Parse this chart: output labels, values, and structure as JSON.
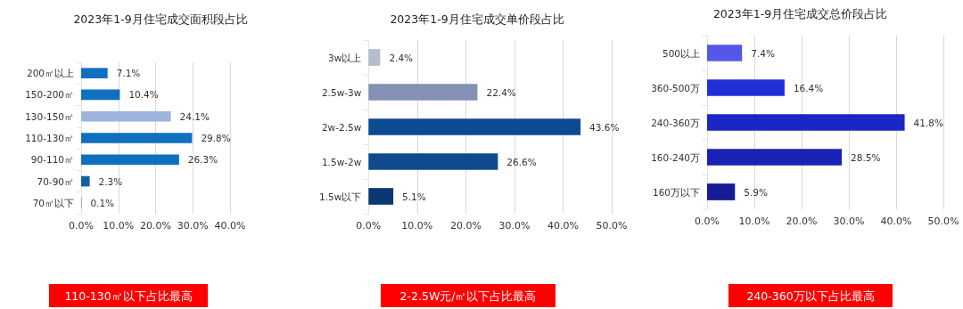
{
  "chart_data": [
    {
      "type": "bar",
      "orientation": "horizontal",
      "title": "2023年1-9月住宅成交面积段占比",
      "categories": [
        "200㎡以上",
        "150-200㎡",
        "130-150㎡",
        "110-130㎡",
        "90-110㎡",
        "70-90㎡",
        "70㎡以下"
      ],
      "values": [
        7.1,
        10.4,
        24.1,
        29.8,
        26.3,
        2.3,
        0.1
      ],
      "colors": [
        "#0f6fc0",
        "#0f6fc0",
        "#9fb4dc",
        "#0f6fc0",
        "#0f6fc0",
        "#135fa8",
        "#0f6fc0"
      ],
      "value_labels": [
        "7.1%",
        "10.4%",
        "24.1%",
        "29.8%",
        "26.3%",
        "2.3%",
        "0.1%"
      ],
      "xlim": [
        0,
        40
      ],
      "xticks": [
        {
          "value": 0,
          "label": "0.0%"
        },
        {
          "value": 10,
          "label": "10.0%"
        },
        {
          "value": 20,
          "label": "20.0%"
        },
        {
          "value": 30,
          "label": "30.0%"
        },
        {
          "value": 40,
          "label": "40.0%"
        }
      ],
      "grid": "x",
      "annotations": [
        "110-130㎡以下占比最高"
      ]
    },
    {
      "type": "bar",
      "orientation": "horizontal",
      "title": "2023年1-9月住宅成交单价段占比",
      "categories": [
        "3w以上",
        "2.5w-3w",
        "2w-2.5w",
        "1.5w-2w",
        "1.5w以下"
      ],
      "values": [
        2.4,
        22.4,
        43.6,
        26.6,
        5.1
      ],
      "colors": [
        "#b4bccf",
        "#8491b4",
        "#0e4a92",
        "#0f4a8f",
        "#0c3871"
      ],
      "value_labels": [
        "2.4%",
        "22.4%",
        "43.6%",
        "26.6%",
        "5.1%"
      ],
      "xlim": [
        0,
        50
      ],
      "xticks": [
        {
          "value": 0,
          "label": "0.0%"
        },
        {
          "value": 10,
          "label": "10.0%"
        },
        {
          "value": 20,
          "label": "20.0%"
        },
        {
          "value": 30,
          "label": "30.0%"
        },
        {
          "value": 40,
          "label": "40.0%"
        },
        {
          "value": 50,
          "label": "50.0%"
        }
      ],
      "grid": "x",
      "annotations": [
        "2-2.5W元/㎡以下占比最高"
      ]
    },
    {
      "type": "bar",
      "orientation": "horizontal",
      "title": "2023年1-9月住宅成交总价段占比",
      "categories": [
        "500以上",
        "360-500万",
        "240-360万",
        "160-240万",
        "160万以下"
      ],
      "values": [
        7.4,
        16.4,
        41.8,
        28.5,
        5.9
      ],
      "colors": [
        "#5457e8",
        "#2130d6",
        "#1a27c4",
        "#1a22b5",
        "#141b95"
      ],
      "value_labels": [
        "7.4%",
        "16.4%",
        "41.8%",
        "28.5%",
        "5.9%"
      ],
      "xlim": [
        0,
        50
      ],
      "xticks": [
        {
          "value": 0,
          "label": "0.0%"
        },
        {
          "value": 10,
          "label": "10.0%"
        },
        {
          "value": 20,
          "label": "20.0%"
        },
        {
          "value": 30,
          "label": "30.0%"
        },
        {
          "value": 40,
          "label": "40.0%"
        },
        {
          "value": 50,
          "label": "50.0%"
        }
      ],
      "grid": "x",
      "annotations": [
        "240-360万以下占比最高"
      ]
    }
  ]
}
